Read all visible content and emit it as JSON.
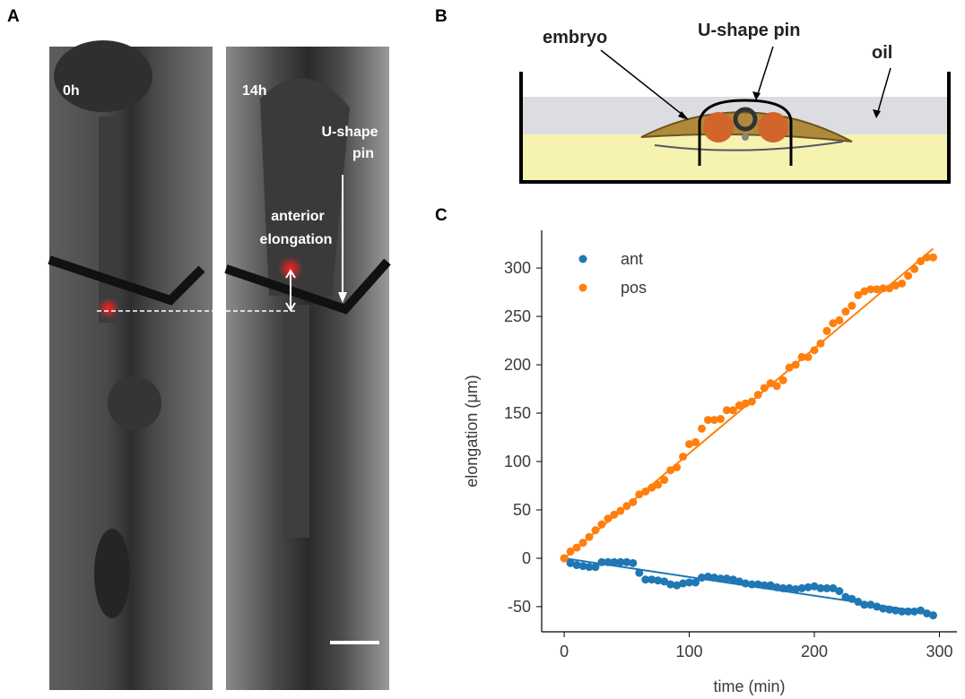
{
  "panel_a": {
    "label": "A",
    "frames": [
      "0h",
      "14h"
    ],
    "pin_label": [
      "U-shape",
      "pin"
    ],
    "elongation_label": [
      "anterior",
      "elongation"
    ]
  },
  "panel_b": {
    "label": "B",
    "embryo": "embryo",
    "pin": "U-shape pin",
    "oil": "oil"
  },
  "panel_c": {
    "label": "C"
  },
  "chart_data": {
    "type": "scatter",
    "xlabel": "time (min)",
    "ylabel": "elongation (μm)",
    "x": [
      0,
      5,
      10,
      15,
      20,
      25,
      30,
      35,
      40,
      45,
      50,
      55,
      60,
      65,
      70,
      75,
      80,
      85,
      90,
      95,
      100,
      105,
      110,
      115,
      120,
      125,
      130,
      135,
      140,
      145,
      150,
      155,
      160,
      165,
      170,
      175,
      180,
      185,
      190,
      195,
      200,
      205,
      210,
      215,
      220,
      225,
      230,
      235,
      240,
      245,
      250,
      255,
      260,
      265,
      270,
      275,
      280,
      285,
      290,
      295
    ],
    "series": [
      {
        "name": "ant",
        "color": "#1f77b4",
        "fit": [
          0,
          -57
        ],
        "values": [
          0,
          -5,
          -7,
          -8,
          -9,
          -9,
          -4,
          -4,
          -4,
          -4,
          -4,
          -5,
          -15,
          -22,
          -22,
          -23,
          -24,
          -27,
          -28,
          -26,
          -25,
          -25,
          -20,
          -19,
          -20,
          -21,
          -21,
          -22,
          -24,
          -26,
          -27,
          -27,
          -28,
          -28,
          -30,
          -31,
          -31,
          -32,
          -31,
          -30,
          -29,
          -31,
          -31,
          -31,
          -34,
          -40,
          -42,
          -45,
          -48,
          -48,
          -50,
          -52,
          -53,
          -54,
          -55,
          -55,
          -55,
          -54,
          -57,
          -59
        ]
      },
      {
        "name": "pos",
        "color": "#ff7f0e",
        "fit": [
          0,
          320
        ],
        "values": [
          0,
          7,
          11,
          16,
          22,
          29,
          35,
          41,
          45,
          49,
          54,
          58,
          66,
          69,
          73,
          76,
          81,
          91,
          94,
          105,
          118,
          120,
          134,
          143,
          143,
          144,
          153,
          153,
          158,
          160,
          162,
          169,
          176,
          181,
          178,
          184,
          197,
          200,
          208,
          208,
          215,
          222,
          235,
          243,
          246,
          255,
          261,
          272,
          276,
          278,
          278,
          279,
          279,
          282,
          284,
          292,
          299,
          307,
          311,
          311
        ]
      }
    ],
    "fit_x": [
      0,
      295
    ],
    "xlim": [
      -18,
      314
    ],
    "ylim": [
      -76,
      339
    ],
    "xticks": [
      0,
      100,
      200,
      300
    ],
    "yticks": [
      -50,
      0,
      50,
      100,
      150,
      200,
      250,
      300
    ],
    "legend": "upper left"
  }
}
